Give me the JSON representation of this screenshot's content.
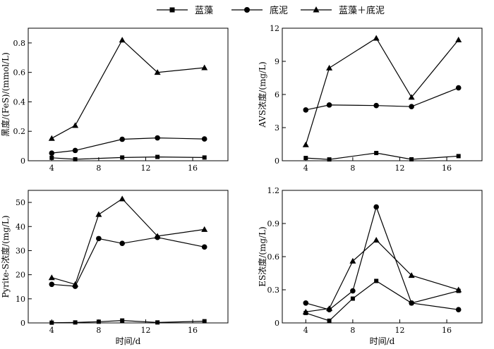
{
  "legend": {
    "series": [
      {
        "name": "蓝藻",
        "marker": "square"
      },
      {
        "name": "底泥",
        "marker": "circle"
      },
      {
        "name": "蓝藻＋底泥",
        "marker": "triangle"
      }
    ],
    "placement": "top-center"
  },
  "chart_data": [
    {
      "type": "line",
      "xlabel": "",
      "ylabel": "黑度/(FeS)/(mmol/L)",
      "xlim": [
        2,
        19
      ],
      "ylim": [
        0,
        0.9
      ],
      "xticks": [
        4,
        8,
        12,
        16
      ],
      "yticks": [
        0,
        0.2,
        0.4,
        0.6,
        0.8
      ],
      "ytick_labels": [
        "0",
        "0.2",
        "0.4",
        "0.6",
        "0.8"
      ],
      "x": [
        4,
        6,
        10,
        13,
        17
      ],
      "series": [
        {
          "name": "蓝藻",
          "values": [
            0.02,
            0.01,
            0.022,
            0.026,
            0.022
          ]
        },
        {
          "name": "底泥",
          "values": [
            0.052,
            0.07,
            0.146,
            0.155,
            0.148
          ]
        },
        {
          "name": "蓝藻＋底泥",
          "values": [
            0.152,
            0.24,
            0.82,
            0.6,
            0.632
          ]
        }
      ]
    },
    {
      "type": "line",
      "xlabel": "",
      "ylabel": "AVS浓度/(mg/L)",
      "xlim": [
        2,
        19
      ],
      "ylim": [
        0,
        12
      ],
      "xticks": [
        4,
        8,
        12,
        16
      ],
      "yticks": [
        0,
        3,
        6,
        9,
        12
      ],
      "ytick_labels": [
        "0",
        "3",
        "6",
        "9",
        "12"
      ],
      "x": [
        4,
        6,
        10,
        13,
        17
      ],
      "series": [
        {
          "name": "蓝藻",
          "values": [
            0.25,
            0.12,
            0.7,
            0.13,
            0.42
          ]
        },
        {
          "name": "底泥",
          "values": [
            4.6,
            5.05,
            5.0,
            4.9,
            6.6
          ]
        },
        {
          "name": "蓝藻＋底泥",
          "values": [
            1.45,
            8.4,
            11.1,
            5.75,
            10.95
          ]
        }
      ]
    },
    {
      "type": "line",
      "xlabel": "时间/d",
      "ylabel": "Pyrite-S浓度/(mg/L)",
      "xlim": [
        2,
        19
      ],
      "ylim": [
        0,
        55
      ],
      "xticks": [
        4,
        8,
        12,
        16
      ],
      "yticks": [
        0,
        10,
        20,
        30,
        40,
        50
      ],
      "ytick_labels": [
        "0",
        "10",
        "20",
        "30",
        "40",
        "50"
      ],
      "x": [
        4,
        6,
        8,
        10,
        13,
        17
      ],
      "series": [
        {
          "name": "蓝藻",
          "values": [
            0.1,
            0.2,
            0.5,
            1.0,
            0.2,
            0.7
          ]
        },
        {
          "name": "底泥",
          "values": [
            16.0,
            15.2,
            35.0,
            33.0,
            35.5,
            31.5
          ]
        },
        {
          "name": "蓝藻＋底泥",
          "values": [
            18.8,
            16.0,
            45.0,
            51.5,
            36.0,
            38.8
          ]
        }
      ]
    },
    {
      "type": "line",
      "xlabel": "时间/d",
      "ylabel": "ES浓度/(mg/L)",
      "xlim": [
        2,
        19
      ],
      "ylim": [
        0,
        1.2
      ],
      "xticks": [
        4,
        8,
        12,
        16
      ],
      "yticks": [
        0,
        0.3,
        0.6,
        0.9,
        1.2
      ],
      "ytick_labels": [
        "0",
        "0.3",
        "0.6",
        "0.9",
        "1.2"
      ],
      "x": [
        4,
        6,
        8,
        10,
        13,
        17
      ],
      "series": [
        {
          "name": "蓝藻",
          "values": [
            0.09,
            0.02,
            0.22,
            0.38,
            0.18,
            0.29
          ]
        },
        {
          "name": "底泥",
          "values": [
            0.18,
            0.12,
            0.29,
            1.05,
            0.18,
            0.12
          ]
        },
        {
          "name": "蓝藻＋底泥",
          "values": [
            0.1,
            0.13,
            0.56,
            0.75,
            0.43,
            0.3
          ]
        }
      ]
    }
  ]
}
